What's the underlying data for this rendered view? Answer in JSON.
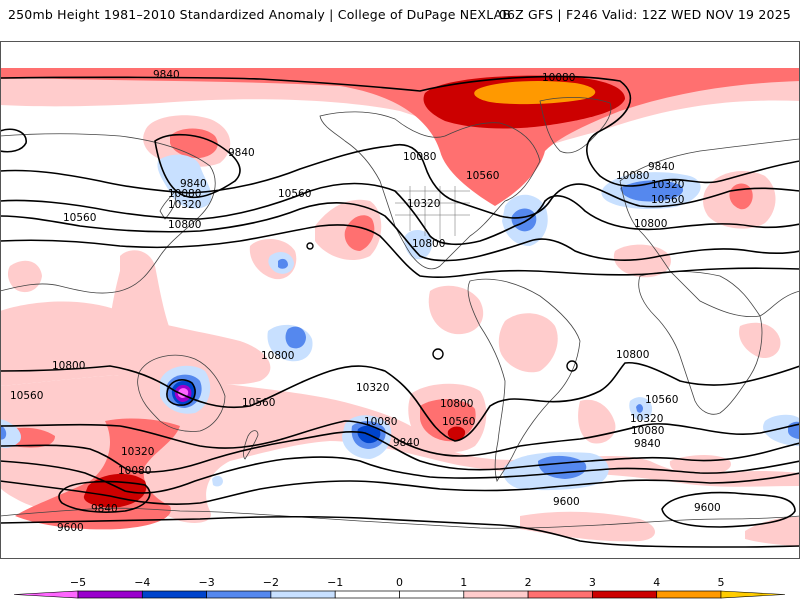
{
  "header": {
    "left_title": "250mb Height 1981–2010 Standardized Anomaly | College of DuPage NEXLAB",
    "right_title": "06Z GFS | F246 Valid: 12Z WED NOV 19 2025"
  },
  "map": {
    "field": "250mb Height",
    "anomaly_units": "standard deviations",
    "contour_interval": 240,
    "contour_labels": [
      {
        "id": "nh-9840-pacific",
        "text": "9840"
      },
      {
        "id": "nh-9840-aleutian",
        "text": "9840"
      },
      {
        "id": "nh-9840-asia",
        "text": "9840"
      },
      {
        "id": "nh-10080-asia",
        "text": "10080"
      },
      {
        "id": "nh-10320-asia",
        "text": "10320"
      },
      {
        "id": "nh-10560-asia",
        "text": "10560"
      },
      {
        "id": "nh-10800-asia",
        "text": "10800"
      },
      {
        "id": "nh-10560-pacific",
        "text": "10560"
      },
      {
        "id": "nh-10080-arctic",
        "text": "10080"
      },
      {
        "id": "nh-10080-canada",
        "text": "10080"
      },
      {
        "id": "nh-10560-canada",
        "text": "10560"
      },
      {
        "id": "nh-10320-usa",
        "text": "10320"
      },
      {
        "id": "nh-10800-usa",
        "text": "10800"
      },
      {
        "id": "nh-9840-europe",
        "text": "9840"
      },
      {
        "id": "nh-10080-europe",
        "text": "10080"
      },
      {
        "id": "nh-10320-europe",
        "text": "10320"
      },
      {
        "id": "nh-10560-europe",
        "text": "10560"
      },
      {
        "id": "nh-10800-africa",
        "text": "10800"
      },
      {
        "id": "sh-10800-australia",
        "text": "10800"
      },
      {
        "id": "sh-10560-nz",
        "text": "10560"
      },
      {
        "id": "sh-10800-indian-w",
        "text": "10800"
      },
      {
        "id": "sh-10560-indian-w",
        "text": "10560"
      },
      {
        "id": "sh-10320-pacific",
        "text": "10320"
      },
      {
        "id": "sh-10080-pacific",
        "text": "10080"
      },
      {
        "id": "sh-9840-pacific",
        "text": "9840"
      },
      {
        "id": "sh-10800-sepacific",
        "text": "10800"
      },
      {
        "id": "sh-10560-sepacific",
        "text": "10560"
      },
      {
        "id": "sh-10800-atlantic",
        "text": "10800"
      },
      {
        "id": "sh-10560-atlantic",
        "text": "10560"
      },
      {
        "id": "sh-10320-atlantic",
        "text": "10320"
      },
      {
        "id": "sh-10080-atlantic",
        "text": "10080"
      },
      {
        "id": "sh-9840-atlantic",
        "text": "9840"
      },
      {
        "id": "sh-10320-indian",
        "text": "10320"
      },
      {
        "id": "sh-10080-indian",
        "text": "10080"
      },
      {
        "id": "sh-9840-indian",
        "text": "9840"
      },
      {
        "id": "sh-9600-west",
        "text": "9600"
      },
      {
        "id": "sh-9600-atlantic",
        "text": "9600"
      },
      {
        "id": "sh-9600-east",
        "text": "9600"
      }
    ]
  },
  "legend": {
    "ticks": [
      "−5",
      "−4",
      "−3",
      "−2",
      "−1",
      "0",
      "1",
      "2",
      "3",
      "4",
      "5"
    ],
    "colors": {
      "below_-5": "#ff66ff",
      "-5_-4": "#9900cc",
      "-4_-3": "#0044cc",
      "-3_-2": "#5588ee",
      "-2_-1": "#c8e0ff",
      "-1_0": "#ffffff",
      "0_1": "#ffffff",
      "1_2": "#ffcccc",
      "2_3": "#ff7070",
      "3_4": "#cc0000",
      "4_5": "#ff9900",
      "above_5": "#ffcc00"
    }
  }
}
